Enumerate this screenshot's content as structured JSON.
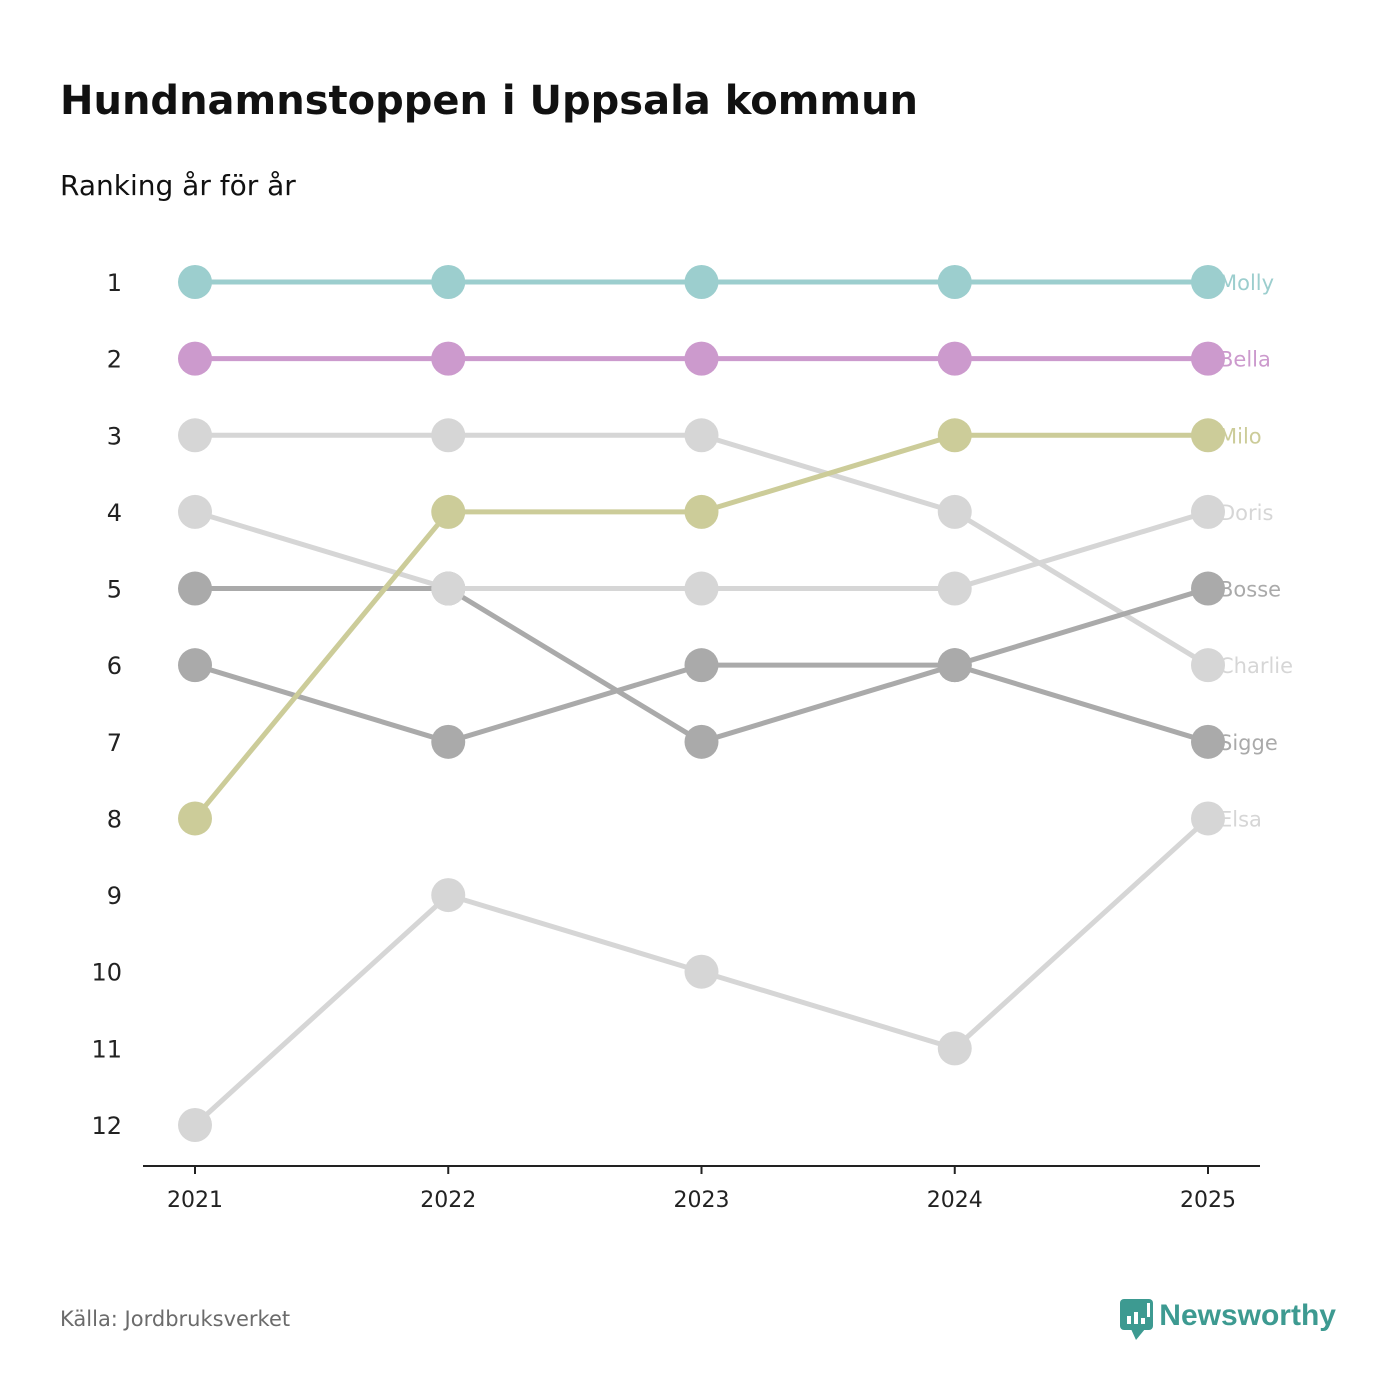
{
  "header": {
    "title": "Hundnamnstoppen i Uppsala kommun",
    "subtitle": "Ranking år för år"
  },
  "footer": {
    "source": "Källa: Jordbruksverket",
    "brand": "Newsworthy",
    "brand_icon": "newsworthy-logo-icon"
  },
  "colors": {
    "brand": "#3d9a91",
    "axis": "#222222",
    "text": "#111111"
  },
  "chart_data": {
    "type": "line",
    "subtype": "bump",
    "title": "Hundnamnstoppen i Uppsala kommun",
    "subtitle": "Ranking år för år",
    "xlabel": "",
    "ylabel": "",
    "categories": [
      "2021",
      "2022",
      "2023",
      "2024",
      "2025"
    ],
    "y_ticks": [
      1,
      2,
      3,
      4,
      5,
      6,
      7,
      8,
      9,
      10,
      11,
      12
    ],
    "ylim": [
      1,
      12
    ],
    "y_inverted": true,
    "grid": false,
    "legend": "direct labels at right end of lines",
    "series": [
      {
        "name": "Molly",
        "values": [
          1,
          1,
          1,
          1,
          1
        ],
        "color": "#9ccece"
      },
      {
        "name": "Bella",
        "values": [
          2,
          2,
          2,
          2,
          2
        ],
        "color": "#cc9acd"
      },
      {
        "name": "Milo",
        "values": [
          8,
          4,
          4,
          3,
          3
        ],
        "color": "#cccc99"
      },
      {
        "name": "Doris",
        "values": [
          4,
          5,
          5,
          5,
          4
        ],
        "color": "#d6d6d6"
      },
      {
        "name": "Bosse",
        "values": [
          6,
          7,
          6,
          6,
          5
        ],
        "color": "#aaaaaa"
      },
      {
        "name": "Charlie",
        "values": [
          3,
          3,
          3,
          4,
          6
        ],
        "color": "#d6d6d6"
      },
      {
        "name": "Sigge",
        "values": [
          5,
          5,
          7,
          6,
          7
        ],
        "color": "#aaaaaa"
      },
      {
        "name": "Elsa",
        "values": [
          12,
          9,
          10,
          11,
          8
        ],
        "color": "#d6d6d6"
      }
    ]
  }
}
